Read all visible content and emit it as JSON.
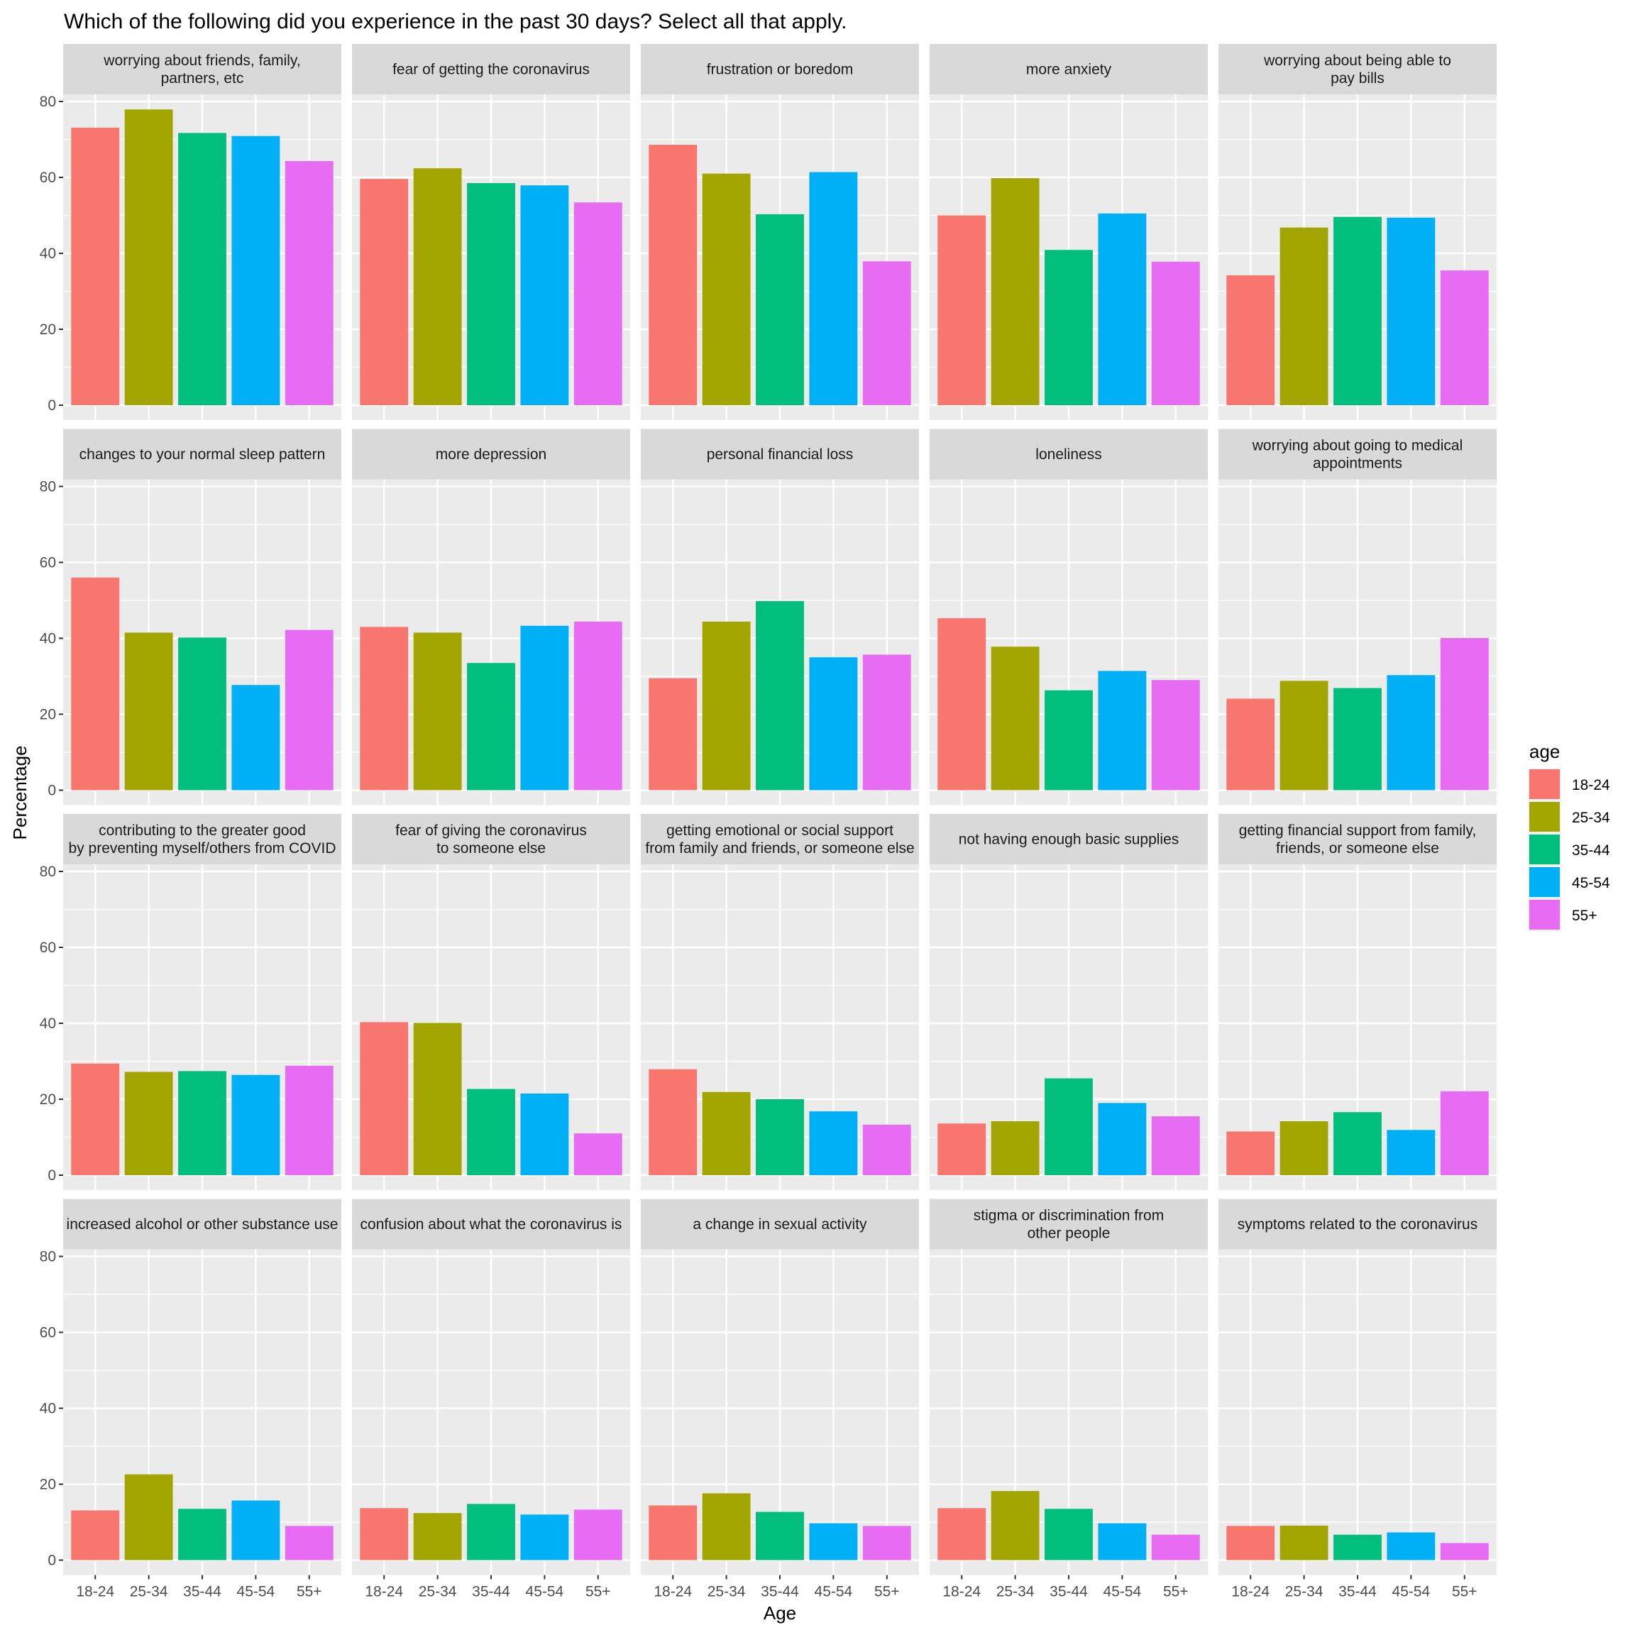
{
  "chart_data": {
    "type": "bar",
    "title": "Which of the following did you experience in the past 30 days? Select all that apply.",
    "xlabel": "Age",
    "ylabel": "Percentage",
    "ylim": [
      0,
      90
    ],
    "yticks": [
      0,
      20,
      40,
      60,
      80
    ],
    "categories": [
      "18-24",
      "25-34",
      "35-44",
      "45-54",
      "55+"
    ],
    "legend": {
      "title": "age",
      "position": "right",
      "entries": [
        "18-24",
        "25-34",
        "35-44",
        "45-54",
        "55+"
      ]
    },
    "colors": {
      "18-24": "#F8766D",
      "25-34": "#A3A500",
      "35-44": "#00BF7D",
      "45-54": "#00B0F6",
      "55+": "#E76BF3"
    },
    "grid": true,
    "facets": [
      {
        "label": [
          "worrying about friends, family,",
          "partners, etc"
        ],
        "values": [
          73.1,
          77.9,
          71.7,
          70.9,
          64.3
        ]
      },
      {
        "label": [
          "fear of getting the coronavirus"
        ],
        "values": [
          59.6,
          62.4,
          58.5,
          57.9,
          53.4
        ]
      },
      {
        "label": [
          "frustration or boredom"
        ],
        "values": [
          68.6,
          61.0,
          50.3,
          61.4,
          37.9
        ]
      },
      {
        "label": [
          "more anxiety"
        ],
        "values": [
          50.0,
          59.8,
          40.9,
          50.5,
          37.8
        ]
      },
      {
        "label": [
          "worrying about being able to",
          "pay bills"
        ],
        "values": [
          34.2,
          46.8,
          49.6,
          49.4,
          35.5
        ]
      },
      {
        "label": [
          "changes to your normal sleep pattern"
        ],
        "values": [
          56.0,
          41.5,
          40.2,
          27.7,
          42.2
        ]
      },
      {
        "label": [
          "more depression"
        ],
        "values": [
          43.0,
          41.5,
          33.5,
          43.3,
          44.4
        ]
      },
      {
        "label": [
          "personal financial loss"
        ],
        "values": [
          29.5,
          44.4,
          49.8,
          35.0,
          35.7
        ]
      },
      {
        "label": [
          "loneliness"
        ],
        "values": [
          45.3,
          37.8,
          26.3,
          31.4,
          29.0
        ]
      },
      {
        "label": [
          "worrying about going to medical",
          "appointments"
        ],
        "values": [
          24.1,
          28.8,
          26.9,
          30.3,
          40.1
        ]
      },
      {
        "label": [
          "contributing to the greater good",
          "by preventing myself/others from COVID"
        ],
        "values": [
          29.4,
          27.2,
          27.4,
          26.4,
          28.8
        ]
      },
      {
        "label": [
          "fear of giving the coronavirus",
          "to someone else"
        ],
        "values": [
          40.3,
          40.1,
          22.7,
          21.5,
          11.0
        ]
      },
      {
        "label": [
          "getting emotional or social support",
          "from family and friends, or someone else"
        ],
        "values": [
          27.9,
          21.9,
          20.0,
          16.8,
          13.3
        ]
      },
      {
        "label": [
          "not having enough basic supplies"
        ],
        "values": [
          13.6,
          14.2,
          25.5,
          19.0,
          15.5
        ]
      },
      {
        "label": [
          "getting financial support from family,",
          "friends, or someone else"
        ],
        "values": [
          11.5,
          14.2,
          16.6,
          11.9,
          22.1
        ]
      },
      {
        "label": [
          "increased alcohol or other substance use"
        ],
        "values": [
          13.1,
          22.6,
          13.5,
          15.7,
          9.0
        ]
      },
      {
        "label": [
          "confusion about what the coronavirus is"
        ],
        "values": [
          13.7,
          12.4,
          14.8,
          12.0,
          13.3
        ]
      },
      {
        "label": [
          "a change in sexual activity"
        ],
        "values": [
          14.4,
          17.6,
          12.7,
          9.7,
          9.0
        ]
      },
      {
        "label": [
          "stigma or discrimination from",
          "other people"
        ],
        "values": [
          13.7,
          18.2,
          13.5,
          9.7,
          6.7
        ]
      },
      {
        "label": [
          "symptoms related to the coronavirus"
        ],
        "values": [
          9.0,
          9.1,
          6.7,
          7.3,
          4.5
        ]
      }
    ]
  }
}
